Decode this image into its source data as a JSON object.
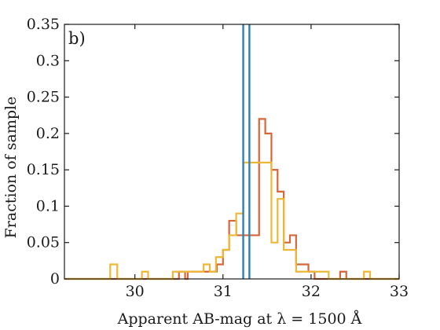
{
  "chart_data": {
    "type": "histogram",
    "panel_label": "b)",
    "xlabel": "Apparent AB-mag at λ = 1500 Å",
    "ylabel": "Fraction of sample",
    "xlim": [
      29.2,
      33.0
    ],
    "ylim": [
      0,
      0.35
    ],
    "xticks": [
      {
        "value": 30,
        "label": "30"
      },
      {
        "value": 31,
        "label": "31"
      },
      {
        "value": 32,
        "label": "32"
      },
      {
        "value": 33,
        "label": "33"
      }
    ],
    "yticks": [
      {
        "value": 0,
        "label": "0"
      },
      {
        "value": 0.05,
        "label": "0.05"
      },
      {
        "value": 0.1,
        "label": "0.1"
      },
      {
        "value": 0.15,
        "label": "0.15"
      },
      {
        "value": 0.2,
        "label": "0.2"
      },
      {
        "value": 0.25,
        "label": "0.25"
      },
      {
        "value": 0.3,
        "label": "0.3"
      },
      {
        "value": 0.35,
        "label": "0.35"
      }
    ],
    "grid": false,
    "series": [
      {
        "color": "#d6663a",
        "steps": [
          [
            29.2,
            0
          ],
          [
            30.5,
            0
          ],
          [
            30.5,
            0.01
          ],
          [
            30.57,
            0.01
          ],
          [
            30.57,
            0
          ],
          [
            30.6,
            0
          ],
          [
            30.6,
            0.01
          ],
          [
            30.93,
            0.01
          ],
          [
            30.93,
            0.02
          ],
          [
            31.0,
            0.02
          ],
          [
            31.0,
            0.04
          ],
          [
            31.07,
            0.04
          ],
          [
            31.07,
            0.08
          ],
          [
            31.15,
            0.08
          ],
          [
            31.15,
            0.06
          ],
          [
            31.23,
            0.06
          ],
          [
            31.23,
            0.06
          ],
          [
            31.41,
            0.06
          ],
          [
            31.41,
            0.22
          ],
          [
            31.48,
            0.22
          ],
          [
            31.48,
            0.2
          ],
          [
            31.55,
            0.2
          ],
          [
            31.55,
            0.15
          ],
          [
            31.62,
            0.15
          ],
          [
            31.62,
            0.12
          ],
          [
            31.69,
            0.12
          ],
          [
            31.69,
            0.05
          ],
          [
            31.76,
            0.05
          ],
          [
            31.76,
            0.06
          ],
          [
            31.83,
            0.06
          ],
          [
            31.83,
            0.02
          ],
          [
            31.97,
            0.02
          ],
          [
            31.97,
            0.01
          ],
          [
            32.04,
            0.01
          ],
          [
            32.04,
            0
          ],
          [
            32.33,
            0
          ],
          [
            32.33,
            0.01
          ],
          [
            32.4,
            0.01
          ],
          [
            32.4,
            0
          ],
          [
            33.0,
            0
          ]
        ]
      },
      {
        "color": "#edb836",
        "steps": [
          [
            29.2,
            0
          ],
          [
            29.72,
            0
          ],
          [
            29.72,
            0.02
          ],
          [
            29.8,
            0.02
          ],
          [
            29.8,
            0
          ],
          [
            30.08,
            0
          ],
          [
            30.08,
            0.01
          ],
          [
            30.15,
            0.01
          ],
          [
            30.15,
            0
          ],
          [
            30.43,
            0
          ],
          [
            30.43,
            0.01
          ],
          [
            30.78,
            0.01
          ],
          [
            30.78,
            0.02
          ],
          [
            30.85,
            0.02
          ],
          [
            30.85,
            0.01
          ],
          [
            30.92,
            0.01
          ],
          [
            30.92,
            0.03
          ],
          [
            31.0,
            0.03
          ],
          [
            31.0,
            0.04
          ],
          [
            31.07,
            0.04
          ],
          [
            31.07,
            0.06
          ],
          [
            31.15,
            0.06
          ],
          [
            31.15,
            0.09
          ],
          [
            31.23,
            0.09
          ],
          [
            31.23,
            0.16
          ],
          [
            31.41,
            0.16
          ],
          [
            31.41,
            0.16
          ],
          [
            31.48,
            0.16
          ],
          [
            31.48,
            0.16
          ],
          [
            31.55,
            0.16
          ],
          [
            31.55,
            0.05
          ],
          [
            31.62,
            0.05
          ],
          [
            31.62,
            0.11
          ],
          [
            31.69,
            0.11
          ],
          [
            31.69,
            0.04
          ],
          [
            31.76,
            0.04
          ],
          [
            31.76,
            0.04
          ],
          [
            31.83,
            0.04
          ],
          [
            31.83,
            0.01
          ],
          [
            31.9,
            0.01
          ],
          [
            31.9,
            0.01
          ],
          [
            32.2,
            0.01
          ],
          [
            32.2,
            0
          ],
          [
            32.6,
            0
          ],
          [
            32.6,
            0.01
          ],
          [
            32.67,
            0.01
          ],
          [
            32.67,
            0
          ],
          [
            33.0,
            0
          ]
        ]
      }
    ],
    "vlines": [
      {
        "x": 31.23,
        "color": "#2e7fba"
      },
      {
        "x": 31.3,
        "color": "#2e7fba"
      }
    ]
  }
}
